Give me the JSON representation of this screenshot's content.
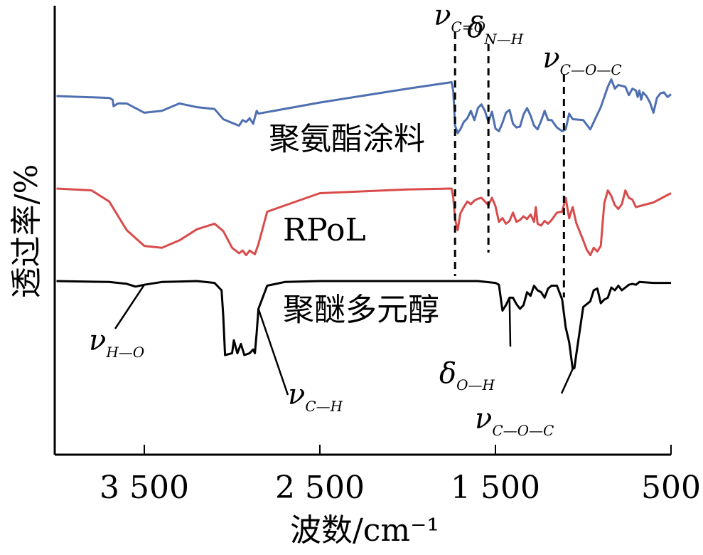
{
  "chart_data": {
    "type": "line",
    "xlabel": "波数/cm⁻¹",
    "ylabel": "透过率/%",
    "xlim": [
      4000,
      500
    ],
    "x_ticks": [
      3500,
      2500,
      1500,
      500
    ],
    "x_tick_labels": [
      "3 500",
      "2 500",
      "1 500",
      "500"
    ],
    "series": [
      {
        "name": "聚氨酯涂料",
        "color": "#4e6fb0",
        "x": [
          4000,
          3700,
          3680,
          3675,
          3650,
          3600,
          3500,
          3400,
          3300,
          3200,
          3100,
          3050,
          3000,
          2960,
          2940,
          2920,
          2900,
          2880,
          2870,
          2860,
          2850,
          2500,
          2000,
          1750,
          1740,
          1730,
          1715,
          1700,
          1680,
          1660,
          1640,
          1620,
          1600,
          1580,
          1560,
          1540,
          1520,
          1500,
          1480,
          1460,
          1440,
          1420,
          1400,
          1380,
          1360,
          1340,
          1320,
          1300,
          1280,
          1260,
          1240,
          1220,
          1200,
          1180,
          1150,
          1120,
          1100,
          1080,
          1060,
          1000,
          960,
          900,
          880,
          860,
          840,
          820,
          800,
          780,
          760,
          740,
          720,
          700,
          690,
          680,
          670,
          660,
          640,
          620,
          600,
          580,
          560,
          540,
          520,
          500
        ],
        "y": [
          1.0,
          0.98,
          0.96,
          0.89,
          0.92,
          0.92,
          0.82,
          0.84,
          0.92,
          0.88,
          0.86,
          0.75,
          0.71,
          0.68,
          0.74,
          0.72,
          0.76,
          0.7,
          0.77,
          0.84,
          0.81,
          0.93,
          1.08,
          1.15,
          1.05,
          0.68,
          0.6,
          0.64,
          0.72,
          0.76,
          0.84,
          0.74,
          0.87,
          0.91,
          0.84,
          0.72,
          0.83,
          0.65,
          0.62,
          0.71,
          0.82,
          0.85,
          0.7,
          0.66,
          0.67,
          0.8,
          0.87,
          0.79,
          0.68,
          0.64,
          0.73,
          0.84,
          0.74,
          0.74,
          0.66,
          0.62,
          0.64,
          0.81,
          0.75,
          0.74,
          0.64,
          0.88,
          0.99,
          1.1,
          1.18,
          1.08,
          1.12,
          1.11,
          1.1,
          1.01,
          1.08,
          1.06,
          0.99,
          1.06,
          0.96,
          1.04,
          1.0,
          0.93,
          0.82,
          0.98,
          1.03,
          1.04,
          0.99,
          1.02
        ],
        "base": 1.0,
        "scale": 1.0
      },
      {
        "name": "RPoL",
        "color": "#d94b4b",
        "x": [
          4000,
          3800,
          3700,
          3600,
          3500,
          3400,
          3300,
          3200,
          3100,
          3050,
          3000,
          2960,
          2940,
          2920,
          2900,
          2870,
          2850,
          2800,
          2500,
          2000,
          1750,
          1740,
          1730,
          1715,
          1700,
          1680,
          1660,
          1640,
          1620,
          1600,
          1580,
          1560,
          1540,
          1520,
          1500,
          1480,
          1460,
          1440,
          1420,
          1400,
          1380,
          1360,
          1340,
          1320,
          1300,
          1280,
          1270,
          1260,
          1240,
          1220,
          1200,
          1180,
          1150,
          1120,
          1100,
          1080,
          1060,
          1040,
          1000,
          980,
          960,
          940,
          920,
          900,
          880,
          860,
          840,
          820,
          800,
          780,
          760,
          740,
          720,
          700,
          600,
          500
        ],
        "y": [
          1.0,
          0.98,
          0.86,
          0.55,
          0.38,
          0.36,
          0.44,
          0.56,
          0.62,
          0.54,
          0.36,
          0.3,
          0.33,
          0.28,
          0.33,
          0.29,
          0.4,
          0.75,
          0.95,
          0.99,
          1.0,
          0.9,
          0.67,
          0.55,
          0.73,
          0.8,
          0.86,
          0.83,
          0.87,
          0.89,
          0.9,
          0.86,
          0.82,
          0.9,
          0.81,
          0.64,
          0.68,
          0.62,
          0.65,
          0.74,
          0.64,
          0.66,
          0.7,
          0.67,
          0.72,
          0.64,
          0.8,
          0.62,
          0.6,
          0.65,
          0.62,
          0.66,
          0.74,
          0.75,
          0.9,
          0.68,
          0.8,
          0.63,
          0.44,
          0.34,
          0.28,
          0.36,
          0.32,
          0.38,
          0.84,
          0.98,
          0.92,
          0.82,
          0.78,
          0.83,
          0.98,
          0.9,
          0.88,
          0.8,
          0.85,
          0.95
        ],
        "base": 0.0,
        "scale": 1.0
      },
      {
        "name": "聚醚多元醇",
        "color": "#000000",
        "x": [
          4000,
          3700,
          3600,
          3550,
          3500,
          3400,
          3200,
          3100,
          3060,
          3050,
          3040,
          3000,
          2990,
          2970,
          2950,
          2930,
          2900,
          2880,
          2870,
          2860,
          2850,
          2800,
          2700,
          2500,
          2000,
          1600,
          1500,
          1480,
          1460,
          1440,
          1420,
          1400,
          1380,
          1360,
          1340,
          1320,
          1300,
          1280,
          1260,
          1240,
          1220,
          1200,
          1180,
          1150,
          1120,
          1100,
          1080,
          1060,
          1050,
          1040,
          1000,
          960,
          940,
          920,
          900,
          880,
          860,
          840,
          820,
          800,
          780,
          760,
          740,
          720,
          700,
          680,
          600,
          500
        ],
        "y": [
          1.0,
          0.99,
          0.97,
          0.94,
          0.96,
          0.99,
          1.0,
          0.98,
          0.9,
          0.62,
          0.2,
          0.22,
          0.36,
          0.22,
          0.32,
          0.2,
          0.22,
          0.26,
          0.22,
          0.44,
          0.7,
          0.95,
          0.99,
          1.0,
          1.0,
          1.0,
          0.98,
          0.96,
          0.68,
          0.74,
          0.82,
          0.82,
          0.75,
          0.7,
          0.74,
          0.88,
          0.84,
          0.95,
          0.9,
          0.88,
          0.82,
          0.92,
          0.95,
          0.95,
          0.8,
          0.5,
          0.34,
          0.05,
          0.06,
          0.2,
          0.72,
          0.78,
          0.9,
          0.92,
          0.76,
          0.8,
          0.82,
          0.93,
          0.9,
          0.95,
          0.9,
          0.93,
          0.96,
          0.97,
          0.96,
          0.99,
          0.98,
          0.98
        ],
        "base": -1.0,
        "scale": 1.0
      }
    ],
    "series_labels": [
      "聚氨酯涂料",
      "RPoL",
      "聚醚多元醇"
    ],
    "reference_lines": [
      {
        "x": 1730,
        "label": "C=O",
        "symbol": "ν"
      },
      {
        "x": 1540,
        "label": "N—H",
        "symbol": "δ"
      },
      {
        "x": 1110,
        "label": "C—O—C",
        "symbol": "ν"
      }
    ],
    "annotations": [
      {
        "symbol": "ν",
        "sub": "H—O",
        "target_x": 3500,
        "target_series": 2
      },
      {
        "symbol": "ν",
        "sub": "C—H",
        "target_x": 2850,
        "target_series": 2
      },
      {
        "symbol": "δ",
        "sub": "O—H",
        "target_x": 1420,
        "target_series": 2
      },
      {
        "symbol": "ν",
        "sub": "C—O—C",
        "target_x": 1060,
        "target_series": 2
      }
    ]
  }
}
